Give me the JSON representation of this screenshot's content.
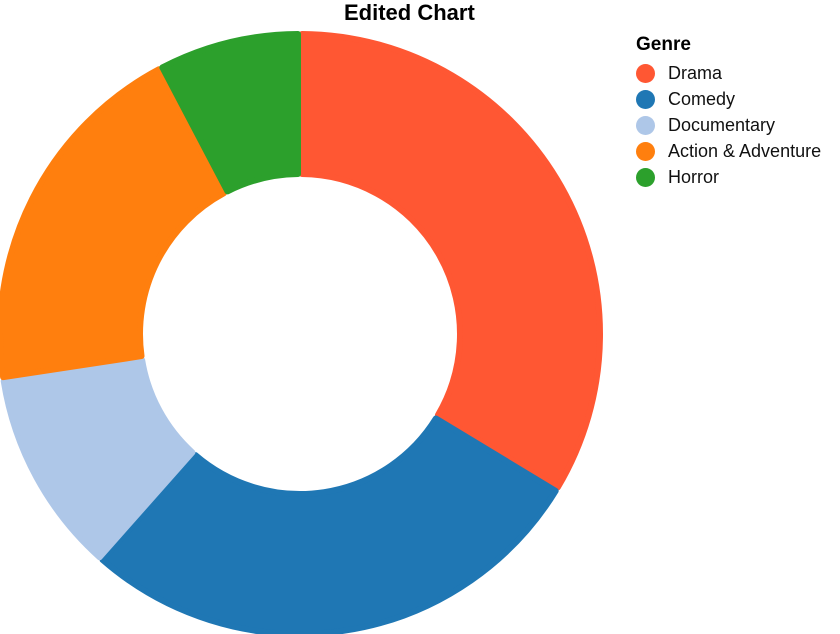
{
  "chart_data": {
    "type": "pie",
    "variant": "donut",
    "title": "Edited Chart",
    "legend_title": "Genre",
    "legend_position": "top-right",
    "categories": [
      "Drama",
      "Comedy",
      "Documentary",
      "Action & Adventure",
      "Horror"
    ],
    "values": [
      35,
      29,
      11.5,
      20.5,
      8
    ],
    "colors": [
      "#ff5733",
      "#1f77b4",
      "#aec7e8",
      "#ff7f0e",
      "#2ca02c"
    ]
  }
}
